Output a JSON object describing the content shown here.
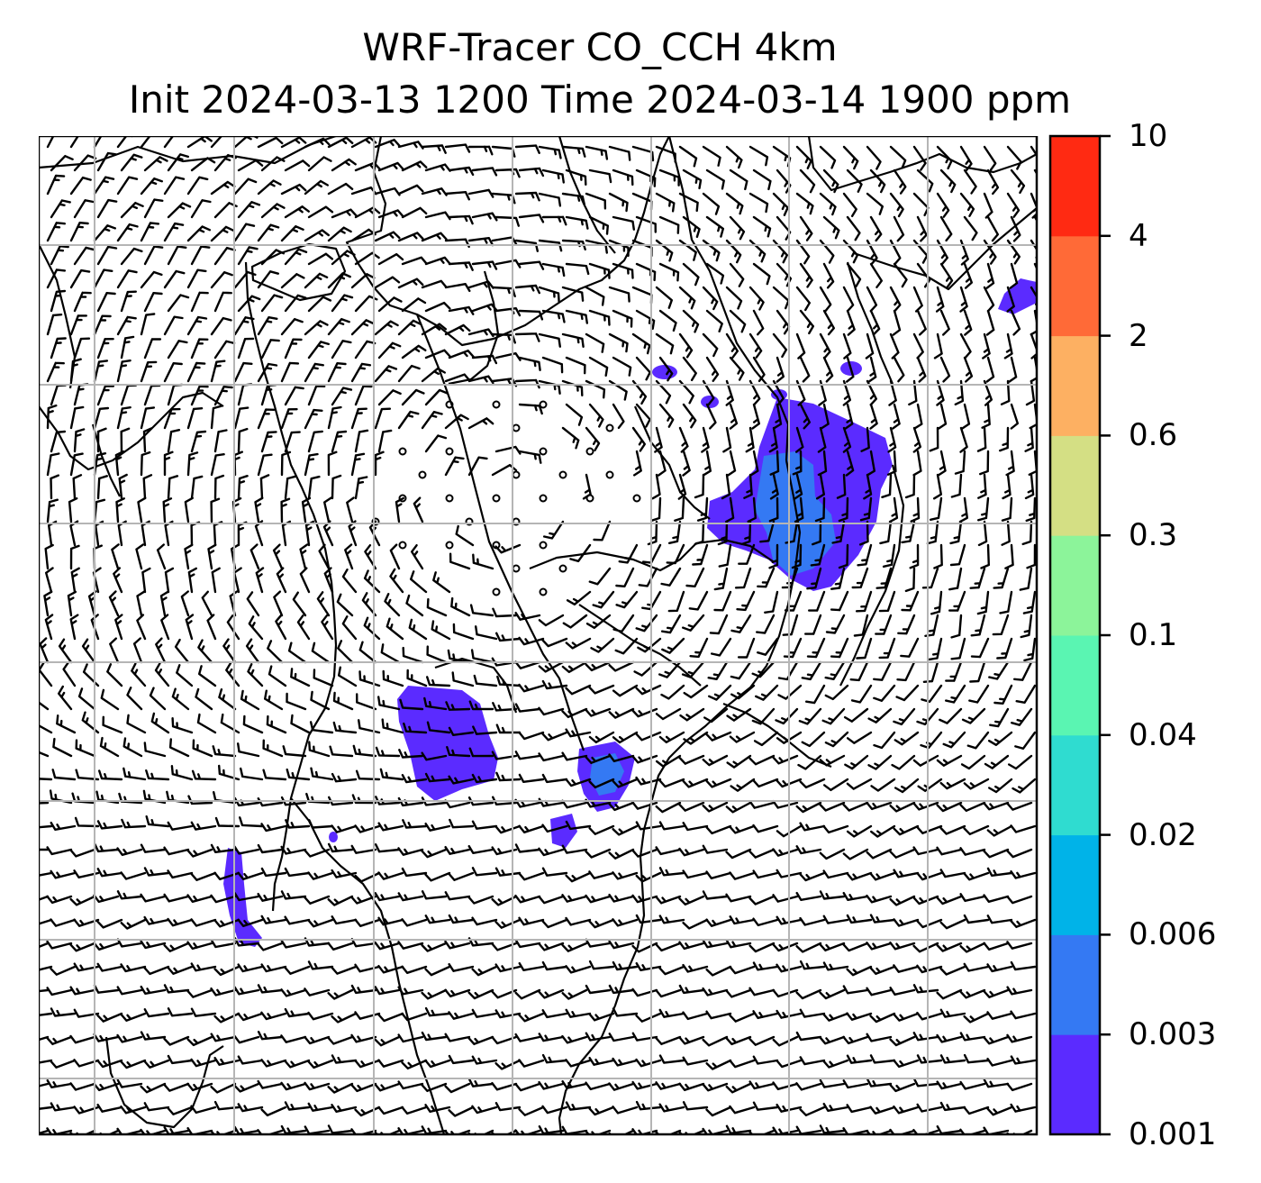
{
  "title": {
    "line1": "WRF-Tracer CO_CCH 4km",
    "line2": "Init 2024-03-13 1200 Time 2024-03-14 1900 ppm"
  },
  "colorbar": {
    "levels": [
      "0.001",
      "0.003",
      "0.006",
      "0.02",
      "0.04",
      "0.1",
      "0.3",
      "0.6",
      "2",
      "4",
      "10"
    ],
    "colors": [
      "#5b2bff",
      "#3479f3",
      "#00b3e8",
      "#2fdcd0",
      "#5af5b2",
      "#8cf49a",
      "#d4df84",
      "#fdb062",
      "#ff6a37",
      "#ff2a12"
    ]
  },
  "map": {
    "gridlines": true,
    "barb_color": "#000000",
    "coast_color": "#000000",
    "tracer_color_low": "#5b2bff",
    "tracer_color_mid": "#3479f3"
  }
}
